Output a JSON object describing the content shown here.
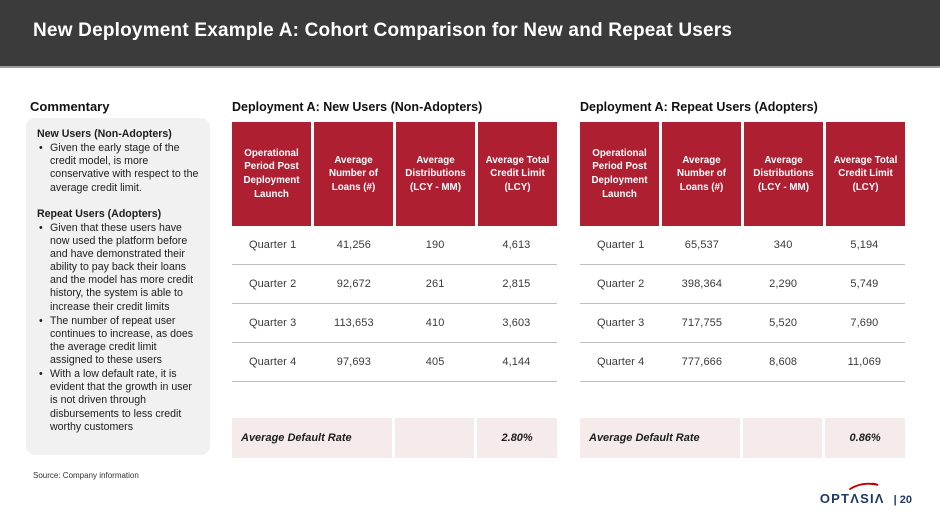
{
  "header": {
    "title": "New Deployment Example A: Cohort Comparison for New and Repeat Users"
  },
  "commentary": {
    "heading": "Commentary",
    "sections": [
      {
        "heading": "New Users (Non-Adopters)",
        "bullets": [
          "Given the early stage of the credit model, is more conservative with respect to the average credit limit."
        ]
      },
      {
        "heading": "Repeat Users (Adopters)",
        "bullets": [
          "Given that these users have now used the platform before and have demonstrated their ability to pay back their loans and the model has more credit history, the system is able to increase their credit limits",
          "The number of repeat user continues to increase, as does the average credit limit assigned to these users",
          "With a low default rate, it is evident that the growth in user is not driven through disbursements to less credit worthy customers"
        ]
      }
    ]
  },
  "tables": [
    {
      "title": "Deployment A: New Users (Non-Adopters)",
      "columns": [
        "Operational Period Post Deployment Launch",
        "Average Number of Loans (#)",
        "Average Distributions (LCY - MM)",
        "Average Total Credit Limit (LCY)"
      ],
      "rows": [
        [
          "Quarter 1",
          "41,256",
          "190",
          "4,613"
        ],
        [
          "Quarter 2",
          "92,672",
          "261",
          "2,815"
        ],
        [
          "Quarter 3",
          "113,653",
          "410",
          "3,603"
        ],
        [
          "Quarter 4",
          "97,693",
          "405",
          "4,144"
        ]
      ],
      "footer": {
        "label": "Average Default Rate",
        "value": "2.80%"
      }
    },
    {
      "title": "Deployment A: Repeat Users (Adopters)",
      "columns": [
        "Operational Period Post Deployment Launch",
        "Average Number of Loans (#)",
        "Average Distributions (LCY - MM)",
        "Average Total Credit Limit (LCY)"
      ],
      "rows": [
        [
          "Quarter 1",
          "65,537",
          "340",
          "5,194"
        ],
        [
          "Quarter 2",
          "398,364",
          "2,290",
          "5,749"
        ],
        [
          "Quarter 3",
          "717,755",
          "5,520",
          "7,690"
        ],
        [
          "Quarter 4",
          "777,666",
          "8,608",
          "11,069"
        ]
      ],
      "footer": {
        "label": "Average Default Rate",
        "value": "0.86%"
      }
    }
  ],
  "footer": {
    "source": "Source: Company information",
    "logo_text": "OPTΛSIΛ",
    "page_label": "| 20"
  },
  "colors": {
    "header_bar": "#3B3B3C",
    "table_header": "#AE1F32",
    "highlight_row": "#F6EBEB",
    "row_divider": "#BFBFBF",
    "logo_navy": "#1F3864",
    "logo_red": "#C00000"
  }
}
